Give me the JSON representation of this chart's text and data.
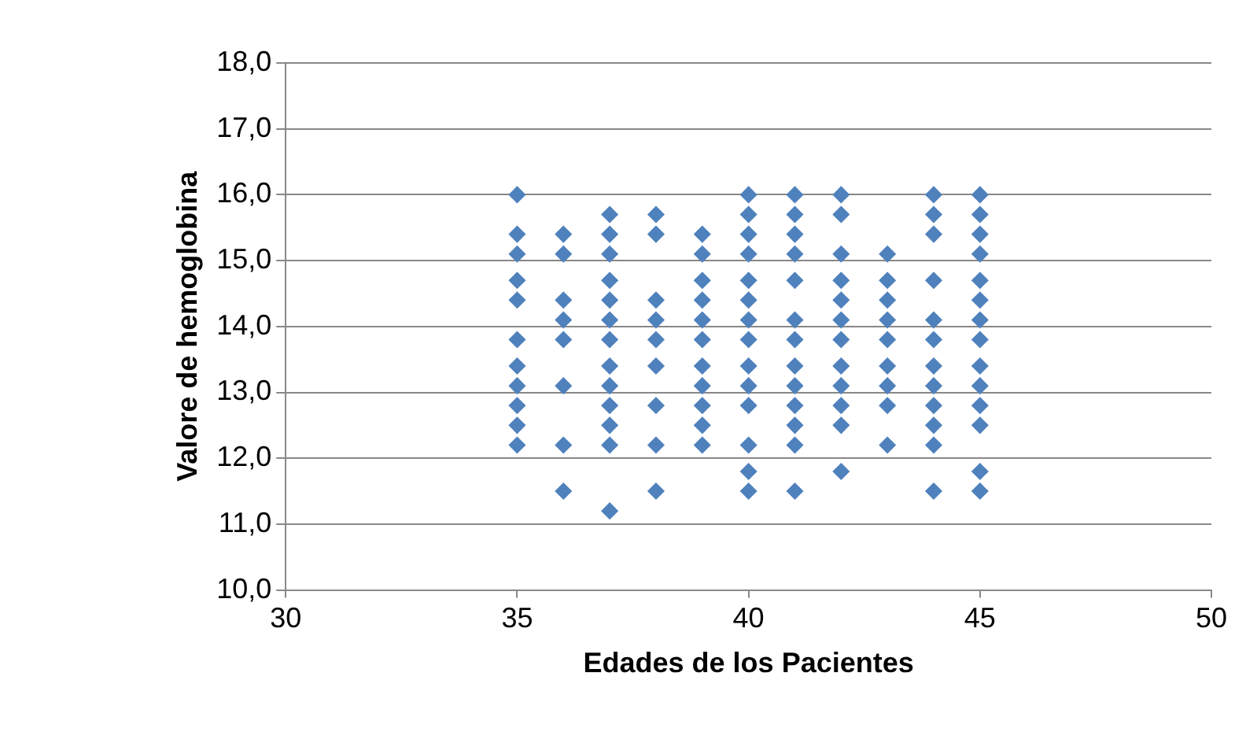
{
  "chart_data": {
    "type": "scatter",
    "xlabel": "Edades de los Pacientes",
    "ylabel": "Valore de hemoglobina",
    "x": [
      35,
      35,
      35,
      35,
      35,
      35,
      35,
      35,
      35,
      35,
      35,
      36,
      36,
      36,
      36,
      36,
      36,
      36,
      36,
      37,
      37,
      37,
      37,
      37,
      37,
      37,
      37,
      37,
      37,
      37,
      37,
      37,
      38,
      38,
      38,
      38,
      38,
      38,
      38,
      38,
      38,
      39,
      39,
      39,
      39,
      39,
      39,
      39,
      39,
      39,
      39,
      39,
      40,
      40,
      40,
      40,
      40,
      40,
      40,
      40,
      40,
      40,
      40,
      40,
      40,
      40,
      41,
      41,
      41,
      41,
      41,
      41,
      41,
      41,
      41,
      41,
      41,
      41,
      41,
      42,
      42,
      42,
      42,
      42,
      42,
      42,
      42,
      42,
      42,
      42,
      42,
      43,
      43,
      43,
      43,
      43,
      43,
      43,
      43,
      43,
      44,
      44,
      44,
      44,
      44,
      44,
      44,
      44,
      44,
      44,
      44,
      44,
      45,
      45,
      45,
      45,
      45,
      45,
      45,
      45,
      45,
      45,
      45,
      45,
      45,
      45
    ],
    "values": [
      16.0,
      15.4,
      15.1,
      14.7,
      14.4,
      13.8,
      13.4,
      13.1,
      12.8,
      12.5,
      12.2,
      15.4,
      15.1,
      14.4,
      14.1,
      13.8,
      13.1,
      12.2,
      11.5,
      15.7,
      15.4,
      15.1,
      14.7,
      14.4,
      14.1,
      13.8,
      13.4,
      13.1,
      12.8,
      12.5,
      12.2,
      11.2,
      15.7,
      15.4,
      14.4,
      14.1,
      13.8,
      13.4,
      12.8,
      12.2,
      11.5,
      15.4,
      15.1,
      14.7,
      14.4,
      14.1,
      13.8,
      13.4,
      13.1,
      12.8,
      12.5,
      12.2,
      16.0,
      15.7,
      15.4,
      15.1,
      14.7,
      14.4,
      14.1,
      13.8,
      13.4,
      13.1,
      12.8,
      12.2,
      11.8,
      11.5,
      16.0,
      15.7,
      15.4,
      15.1,
      14.7,
      14.1,
      13.8,
      13.4,
      13.1,
      12.8,
      12.5,
      12.2,
      11.5,
      16.0,
      15.7,
      15.1,
      14.7,
      14.4,
      14.1,
      13.8,
      13.4,
      13.1,
      12.8,
      12.5,
      11.8,
      15.1,
      14.7,
      14.4,
      14.1,
      13.8,
      13.4,
      13.1,
      12.8,
      12.2,
      16.0,
      15.7,
      15.4,
      14.7,
      14.1,
      13.8,
      13.4,
      13.1,
      12.8,
      12.5,
      12.2,
      11.5,
      16.0,
      15.7,
      15.4,
      15.1,
      14.7,
      14.4,
      14.1,
      13.8,
      13.4,
      13.1,
      12.8,
      12.5,
      11.8,
      11.5
    ],
    "color": "#4f81bd",
    "marker": "diamond",
    "grid": "y",
    "legend": false,
    "xlim": [
      30,
      50
    ],
    "xticks": [
      30,
      35,
      40,
      45,
      50
    ],
    "ylim": [
      10,
      18
    ],
    "yticks": [
      {
        "value": 10,
        "label": "10,0"
      },
      {
        "value": 11,
        "label": "11,0"
      },
      {
        "value": 12,
        "label": "12,0"
      },
      {
        "value": 13,
        "label": "13,0"
      },
      {
        "value": 14,
        "label": "14,0"
      },
      {
        "value": 15,
        "label": "15,0"
      },
      {
        "value": 16,
        "label": "16,0"
      },
      {
        "value": 17,
        "label": "17,0"
      },
      {
        "value": 18,
        "label": "18,0"
      }
    ]
  }
}
